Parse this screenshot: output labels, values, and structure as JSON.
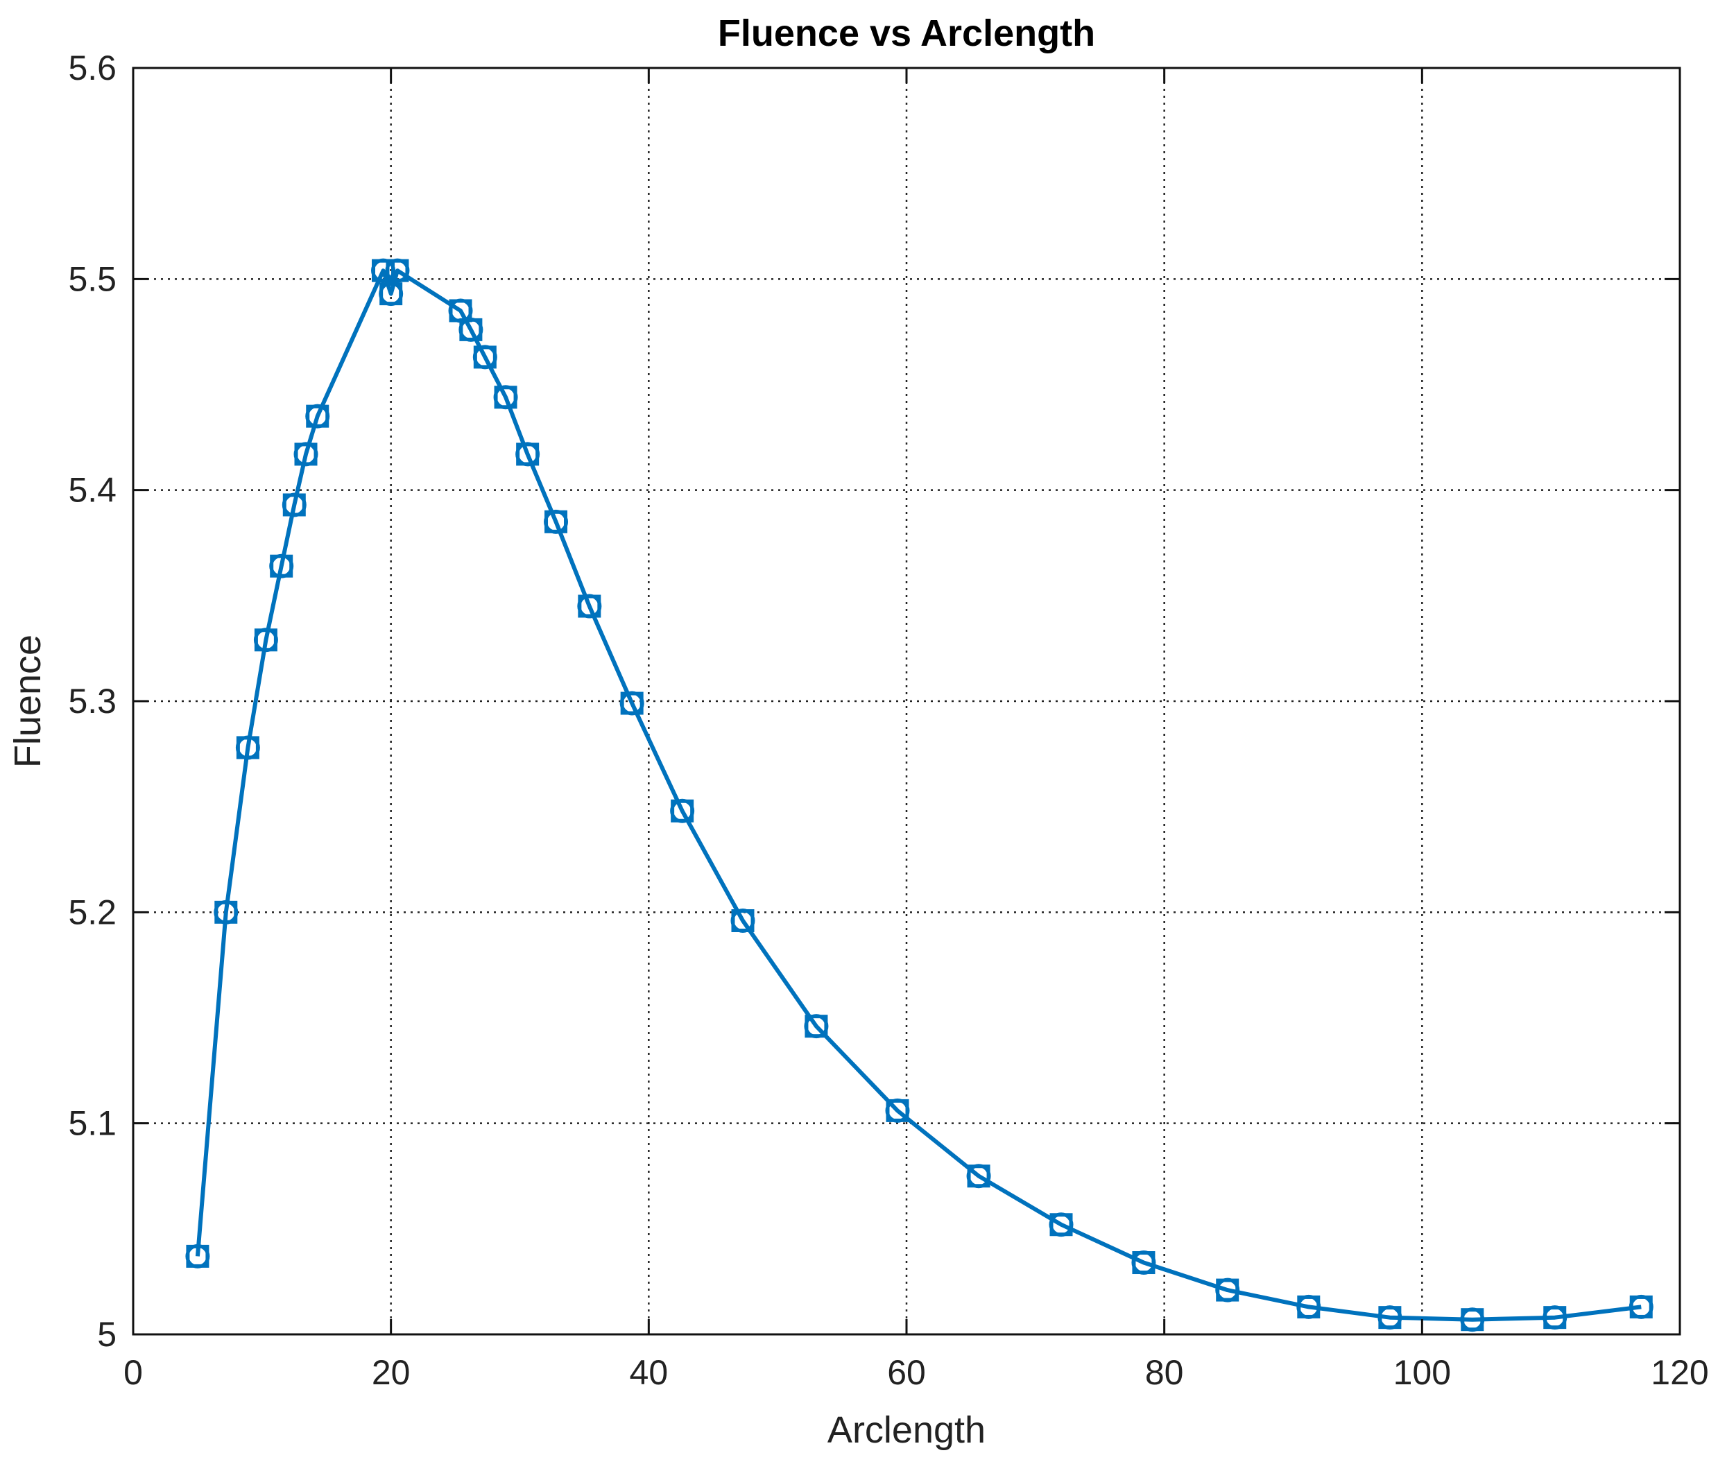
{
  "chart_data": {
    "type": "line",
    "title": "Fluence vs Arclength",
    "xlabel": "Arclength",
    "ylabel": "Fluence",
    "xlim": [
      0,
      120
    ],
    "ylim": [
      5.0,
      5.6
    ],
    "xticks": [
      0,
      20,
      40,
      60,
      80,
      100,
      120
    ],
    "xtick_labels": [
      "0",
      "20",
      "40",
      "60",
      "80",
      "100",
      "120"
    ],
    "yticks": [
      5.0,
      5.1,
      5.2,
      5.3,
      5.4,
      5.5,
      5.6
    ],
    "ytick_labels": [
      "5",
      "5.1",
      "5.2",
      "5.3",
      "5.4",
      "5.5",
      "5.6"
    ],
    "grid": true,
    "line_color": "#0072BD",
    "markers": [
      "square",
      "circle"
    ],
    "series": [
      {
        "x": [
          5.0,
          7.2,
          8.9,
          10.3,
          11.5,
          12.5,
          13.4,
          14.3,
          19.4,
          20.0,
          20.5,
          25.4,
          26.2,
          27.3,
          28.9,
          30.6,
          32.8,
          35.4,
          38.7,
          42.6,
          47.3,
          53.0,
          59.3,
          65.6,
          72.0,
          78.4,
          84.9,
          91.2,
          97.5,
          103.9,
          110.3,
          117.0
        ],
        "y": [
          5.037,
          5.2,
          5.278,
          5.329,
          5.364,
          5.393,
          5.417,
          5.435,
          5.504,
          5.493,
          5.504,
          5.485,
          5.476,
          5.463,
          5.444,
          5.417,
          5.385,
          5.345,
          5.299,
          5.248,
          5.196,
          5.146,
          5.106,
          5.075,
          5.052,
          5.034,
          5.021,
          5.013,
          5.008,
          5.007,
          5.008,
          5.013
        ]
      }
    ]
  }
}
